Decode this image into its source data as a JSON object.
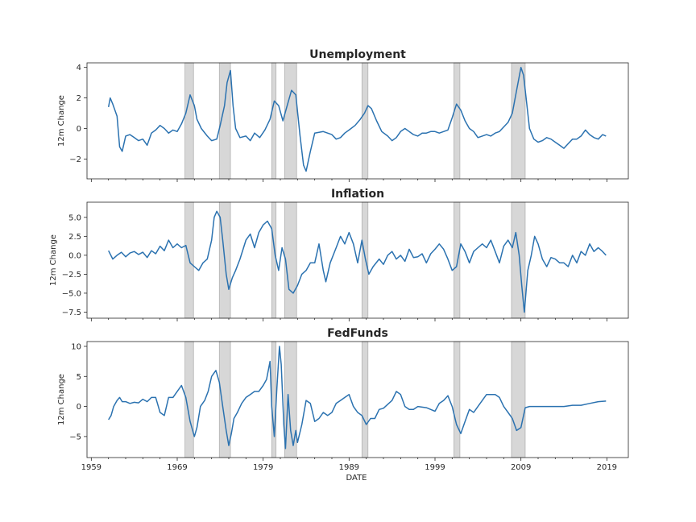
{
  "colors": {
    "line": "#2b72b0",
    "recession": "#b0b0b0",
    "frame": "#262626"
  },
  "shared_x": {
    "label": "DATE",
    "ticks": [
      1959,
      1969,
      1979,
      1989,
      1999,
      2009,
      2019
    ],
    "range": [
      1958.5,
      2021.5
    ]
  },
  "chart_data": [
    {
      "type": "line",
      "title": "Unemployment",
      "ylabel": "12m Change",
      "ylim": [
        -3.3,
        4.3
      ],
      "yticks": [
        -2,
        0,
        2,
        4
      ],
      "ytick_labels": [
        "−2",
        "0",
        "2",
        "4"
      ],
      "recessions": [
        [
          1969.9,
          1970.9
        ],
        [
          1973.9,
          1975.2
        ],
        [
          1980.0,
          1980.5
        ],
        [
          1981.5,
          1982.9
        ],
        [
          1990.5,
          1991.2
        ],
        [
          2001.2,
          2001.9
        ],
        [
          2007.9,
          2009.5
        ]
      ],
      "series": [
        {
          "x": [
            1961.0,
            1961.2,
            1961.5,
            1962.0,
            1962.3,
            1962.6,
            1963.0,
            1963.5,
            1964.0,
            1964.5,
            1965.0,
            1965.5,
            1966.0,
            1966.5,
            1967.0,
            1967.5,
            1968.0,
            1968.5,
            1969.0,
            1969.5,
            1970.0,
            1970.5,
            1971.0,
            1971.3,
            1971.8,
            1972.5,
            1973.0,
            1973.6,
            1974.0,
            1974.5,
            1974.8,
            1975.2,
            1975.5,
            1975.8,
            1976.3,
            1977.0,
            1977.5,
            1978.0,
            1978.6,
            1979.2,
            1979.8,
            1980.3,
            1980.8,
            1981.3,
            1981.8,
            1982.3,
            1982.8,
            1983.3,
            1983.7,
            1984.0,
            1984.5,
            1985.0,
            1986.0,
            1987.0,
            1987.5,
            1988.0,
            1988.5,
            1989.0,
            1989.7,
            1990.3,
            1990.8,
            1991.2,
            1991.6,
            1992.2,
            1992.8,
            1993.5,
            1994.0,
            1994.5,
            1995.0,
            1995.5,
            1996.0,
            1996.5,
            1997.0,
            1997.5,
            1998.0,
            1998.5,
            1999.0,
            1999.5,
            2000.0,
            2000.5,
            2001.0,
            2001.5,
            2002.0,
            2002.5,
            2003.0,
            2003.5,
            2004.0,
            2004.5,
            2005.0,
            2005.5,
            2006.0,
            2006.5,
            2007.0,
            2007.5,
            2008.0,
            2008.5,
            2009.0,
            2009.3,
            2009.6,
            2010.0,
            2010.5,
            2011.0,
            2011.5,
            2012.0,
            2012.5,
            2013.0,
            2013.5,
            2014.0,
            2014.5,
            2015.0,
            2015.5,
            2016.0,
            2016.5,
            2017.0,
            2017.5,
            2018.0,
            2018.5,
            2018.9
          ],
          "y": [
            1.4,
            2.0,
            1.6,
            0.8,
            -1.2,
            -1.5,
            -0.5,
            -0.4,
            -0.6,
            -0.8,
            -0.7,
            -1.1,
            -0.3,
            -0.1,
            0.2,
            0.0,
            -0.3,
            -0.1,
            -0.2,
            0.3,
            1.0,
            2.2,
            1.5,
            0.6,
            0.0,
            -0.5,
            -0.8,
            -0.7,
            0.2,
            1.5,
            3.0,
            3.8,
            1.5,
            0.0,
            -0.6,
            -0.5,
            -0.8,
            -0.3,
            -0.6,
            -0.1,
            0.6,
            1.8,
            1.5,
            0.5,
            1.5,
            2.5,
            2.2,
            -0.5,
            -2.4,
            -2.8,
            -1.5,
            -0.3,
            -0.2,
            -0.4,
            -0.7,
            -0.6,
            -0.3,
            -0.1,
            0.2,
            0.6,
            1.0,
            1.5,
            1.3,
            0.5,
            -0.2,
            -0.5,
            -0.8,
            -0.6,
            -0.2,
            0.0,
            -0.2,
            -0.4,
            -0.5,
            -0.3,
            -0.3,
            -0.2,
            -0.2,
            -0.3,
            -0.2,
            -0.1,
            0.7,
            1.6,
            1.2,
            0.5,
            0.0,
            -0.2,
            -0.6,
            -0.5,
            -0.4,
            -0.5,
            -0.3,
            -0.2,
            0.1,
            0.4,
            1.0,
            2.5,
            4.0,
            3.5,
            2.0,
            0.0,
            -0.7,
            -0.9,
            -0.8,
            -0.6,
            -0.7,
            -0.9,
            -1.1,
            -1.3,
            -1.0,
            -0.7,
            -0.7,
            -0.5,
            -0.1,
            -0.4,
            -0.6,
            -0.7,
            -0.4,
            -0.5
          ]
        }
      ]
    },
    {
      "type": "line",
      "title": "Inflation",
      "ylabel": "12m Change",
      "ylim": [
        -8.3,
        7.0
      ],
      "yticks": [
        -7.5,
        -5.0,
        -2.5,
        0.0,
        2.5,
        5.0
      ],
      "ytick_labels": [
        "−7.5",
        "−5.0",
        "−2.5",
        "0.0",
        "2.5",
        "5.0"
      ],
      "recessions": [
        [
          1969.9,
          1970.9
        ],
        [
          1973.9,
          1975.2
        ],
        [
          1980.0,
          1980.5
        ],
        [
          1981.5,
          1982.9
        ],
        [
          1990.5,
          1991.2
        ],
        [
          2001.2,
          2001.9
        ],
        [
          2007.9,
          2009.5
        ]
      ],
      "series": [
        {
          "x": [
            1961.0,
            1961.5,
            1962.0,
            1962.5,
            1963.0,
            1963.5,
            1964.0,
            1964.5,
            1965.0,
            1965.5,
            1966.0,
            1966.5,
            1967.0,
            1967.5,
            1968.0,
            1968.5,
            1969.0,
            1969.5,
            1970.0,
            1970.5,
            1971.0,
            1971.5,
            1972.0,
            1972.5,
            1973.0,
            1973.3,
            1973.6,
            1974.0,
            1974.3,
            1974.7,
            1975.0,
            1975.4,
            1975.8,
            1976.3,
            1977.0,
            1977.5,
            1978.0,
            1978.5,
            1979.0,
            1979.5,
            1980.0,
            1980.4,
            1980.8,
            1981.2,
            1981.6,
            1982.0,
            1982.5,
            1983.0,
            1983.5,
            1984.0,
            1984.5,
            1985.0,
            1985.5,
            1986.0,
            1986.3,
            1986.8,
            1987.5,
            1988.0,
            1988.5,
            1989.0,
            1989.5,
            1990.0,
            1990.5,
            1990.9,
            1991.3,
            1991.8,
            1992.5,
            1993.0,
            1993.5,
            1994.0,
            1994.5,
            1995.0,
            1995.5,
            1996.0,
            1996.5,
            1997.0,
            1997.5,
            1998.0,
            1998.5,
            1999.0,
            1999.5,
            2000.0,
            2000.5,
            2001.0,
            2001.5,
            2002.0,
            2002.5,
            2003.0,
            2003.5,
            2004.0,
            2004.5,
            2005.0,
            2005.5,
            2006.0,
            2006.5,
            2007.0,
            2007.5,
            2008.0,
            2008.4,
            2008.8,
            2009.1,
            2009.4,
            2009.8,
            2010.2,
            2010.6,
            2011.0,
            2011.5,
            2012.0,
            2012.5,
            2013.0,
            2013.5,
            2014.0,
            2014.5,
            2015.0,
            2015.5,
            2016.0,
            2016.5,
            2017.0,
            2017.5,
            2018.0,
            2018.5,
            2018.9
          ],
          "y": [
            0.6,
            -0.5,
            0.0,
            0.4,
            -0.2,
            0.3,
            0.5,
            0.1,
            0.4,
            -0.3,
            0.6,
            0.2,
            1.2,
            0.6,
            2.0,
            1.0,
            1.5,
            1.0,
            1.3,
            -1.0,
            -1.5,
            -2.0,
            -1.0,
            -0.5,
            2.0,
            5.0,
            5.8,
            5.0,
            2.0,
            -2.5,
            -4.5,
            -3.0,
            -2.0,
            -0.5,
            2.0,
            2.8,
            1.0,
            3.0,
            4.0,
            4.5,
            3.5,
            0.0,
            -2.0,
            1.0,
            -0.5,
            -4.5,
            -5.0,
            -4.0,
            -2.5,
            -2.0,
            -1.0,
            -1.0,
            1.5,
            -2.0,
            -3.5,
            -1.0,
            1.0,
            2.5,
            1.5,
            3.0,
            1.5,
            -1.0,
            2.0,
            -0.5,
            -2.5,
            -1.5,
            -0.5,
            -1.2,
            0.0,
            0.5,
            -0.5,
            0.0,
            -0.8,
            0.8,
            -0.3,
            -0.2,
            0.2,
            -1.0,
            0.2,
            0.8,
            1.5,
            0.8,
            -0.5,
            -2.0,
            -1.5,
            1.5,
            0.5,
            -1.0,
            0.5,
            1.0,
            1.5,
            1.0,
            2.0,
            0.5,
            -1.0,
            1.2,
            2.0,
            1.0,
            3.0,
            0.0,
            -4.0,
            -7.5,
            -2.0,
            0.0,
            2.5,
            1.5,
            -0.5,
            -1.5,
            -0.3,
            -0.5,
            -1.0,
            -1.0,
            -1.5,
            0.0,
            -1.0,
            0.5,
            0.0,
            1.5,
            0.5,
            1.0,
            0.5,
            0.0
          ]
        }
      ]
    },
    {
      "type": "line",
      "title": "FedFunds",
      "ylabel": "12m Change",
      "ylim": [
        -8.5,
        10.8
      ],
      "yticks": [
        -5,
        0,
        5,
        10
      ],
      "ytick_labels": [
        "−5",
        "0",
        "5",
        "10"
      ],
      "recessions": [
        [
          1969.9,
          1970.9
        ],
        [
          1973.9,
          1975.2
        ],
        [
          1980.0,
          1980.5
        ],
        [
          1981.5,
          1982.9
        ],
        [
          1990.5,
          1991.2
        ],
        [
          2001.2,
          2001.9
        ],
        [
          2007.9,
          2009.5
        ]
      ],
      "series": [
        {
          "x": [
            1961.0,
            1961.3,
            1961.6,
            1962.0,
            1962.3,
            1962.6,
            1963.0,
            1963.5,
            1964.0,
            1964.5,
            1965.0,
            1965.5,
            1966.0,
            1966.5,
            1967.0,
            1967.5,
            1968.0,
            1968.5,
            1969.0,
            1969.5,
            1970.0,
            1970.5,
            1971.0,
            1971.3,
            1971.7,
            1972.2,
            1972.6,
            1973.0,
            1973.5,
            1973.9,
            1974.3,
            1974.7,
            1975.0,
            1975.3,
            1975.6,
            1976.0,
            1976.5,
            1977.0,
            1977.5,
            1978.0,
            1978.5,
            1979.0,
            1979.4,
            1979.8,
            1980.0,
            1980.3,
            1980.6,
            1980.9,
            1981.1,
            1981.4,
            1981.6,
            1981.9,
            1982.2,
            1982.5,
            1982.8,
            1983.0,
            1983.5,
            1984.0,
            1984.5,
            1985.0,
            1985.5,
            1986.0,
            1986.5,
            1987.0,
            1987.5,
            1988.0,
            1988.5,
            1989.0,
            1989.5,
            1990.0,
            1990.5,
            1991.0,
            1991.5,
            1992.0,
            1992.5,
            1993.0,
            1994.0,
            1994.5,
            1995.0,
            1995.5,
            1996.0,
            1996.5,
            1997.0,
            1998.0,
            1998.5,
            1999.0,
            1999.5,
            2000.0,
            2000.5,
            2001.0,
            2001.5,
            2002.0,
            2002.5,
            2003.0,
            2003.5,
            2004.0,
            2004.5,
            2005.0,
            2005.5,
            2006.0,
            2006.5,
            2007.0,
            2007.5,
            2008.0,
            2008.5,
            2009.0,
            2009.5,
            2010.0,
            2010.5,
            2011.0,
            2012.0,
            2013.0,
            2014.0,
            2015.0,
            2016.0,
            2017.0,
            2018.0,
            2018.9
          ],
          "y": [
            -2.2,
            -1.5,
            0.0,
            1.0,
            1.5,
            0.8,
            0.8,
            0.5,
            0.7,
            0.6,
            1.2,
            0.8,
            1.5,
            1.5,
            -1.0,
            -1.5,
            1.5,
            1.5,
            2.5,
            3.5,
            1.5,
            -2.5,
            -5.0,
            -3.5,
            0.0,
            1.0,
            2.5,
            5.0,
            6.0,
            4.0,
            0.0,
            -4.0,
            -6.5,
            -4.5,
            -2.0,
            -1.0,
            0.5,
            1.5,
            2.0,
            2.5,
            2.5,
            3.5,
            4.5,
            7.5,
            0.0,
            -5.0,
            3.0,
            10.0,
            7.0,
            -3.0,
            -7.0,
            2.0,
            -4.0,
            -6.5,
            -4.0,
            -6.0,
            -3.0,
            1.0,
            0.5,
            -2.5,
            -2.0,
            -1.0,
            -1.5,
            -1.0,
            0.5,
            1.0,
            1.5,
            2.0,
            0.0,
            -1.0,
            -1.5,
            -3.0,
            -2.0,
            -2.0,
            -0.5,
            -0.3,
            1.0,
            2.5,
            2.0,
            0.0,
            -0.5,
            -0.5,
            0.0,
            -0.2,
            -0.5,
            -0.8,
            0.5,
            1.0,
            1.8,
            0.0,
            -3.0,
            -4.5,
            -2.5,
            -0.5,
            -1.0,
            0.0,
            1.0,
            2.0,
            2.0,
            2.0,
            1.5,
            0.0,
            -1.0,
            -2.0,
            -4.0,
            -3.5,
            -0.2,
            0.0,
            0.0,
            0.0,
            0.0,
            0.0,
            0.0,
            0.2,
            0.2,
            0.5,
            0.8,
            0.9
          ]
        }
      ]
    }
  ]
}
